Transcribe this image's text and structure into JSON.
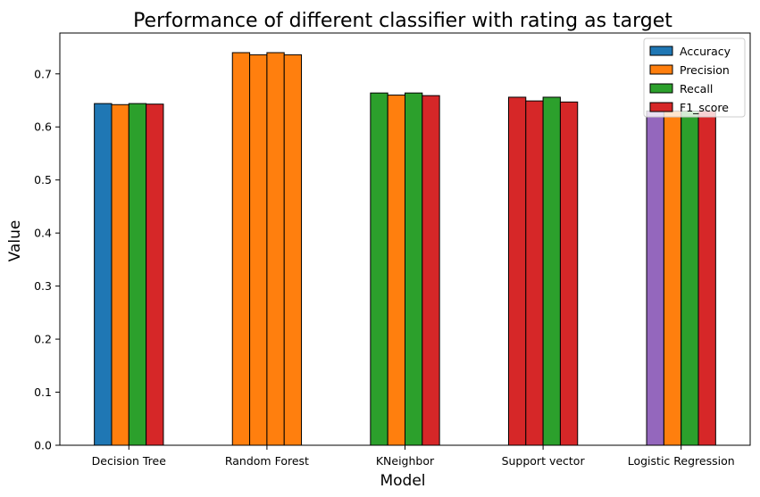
{
  "chart_data": {
    "type": "bar",
    "title": "Performance of different classifier with rating as target",
    "xlabel": "Model",
    "ylabel": "Value",
    "ylim": [
      0,
      0.777
    ],
    "yticks": [
      "0.0",
      "0.1",
      "0.2",
      "0.3",
      "0.4",
      "0.5",
      "0.6",
      "0.7"
    ],
    "grid": false,
    "legend_position": "top-right",
    "categories": [
      "Decision Tree",
      "Random Forest",
      "KNeighbor",
      "Support vector",
      "Logistic Regression"
    ],
    "series": [
      {
        "name": "Accuracy",
        "values": [
          0.644,
          0.74,
          0.664,
          0.656,
          0.63
        ]
      },
      {
        "name": "Precision",
        "values": [
          0.642,
          0.736,
          0.66,
          0.649,
          0.63
        ]
      },
      {
        "name": "Recall",
        "values": [
          0.644,
          0.74,
          0.664,
          0.656,
          0.63
        ]
      },
      {
        "name": "F1_score",
        "values": [
          0.643,
          0.736,
          0.659,
          0.647,
          0.63
        ]
      }
    ],
    "category_colors": [
      [
        "#1f77b4",
        "#ff7f0e",
        "#2ca02c",
        "#d62728"
      ],
      [
        "#ff7f0e",
        "#ff7f0e",
        "#ff7f0e",
        "#ff7f0e"
      ],
      [
        "#2ca02c",
        "#ff7f0e",
        "#2ca02c",
        "#d62728"
      ],
      [
        "#d62728",
        "#d62728",
        "#2ca02c",
        "#d62728"
      ],
      [
        "#9467bd",
        "#ff7f0e",
        "#2ca02c",
        "#d62728"
      ]
    ],
    "legend_colors": [
      "#1f77b4",
      "#ff7f0e",
      "#2ca02c",
      "#d62728"
    ],
    "edge_color": "#000000"
  }
}
